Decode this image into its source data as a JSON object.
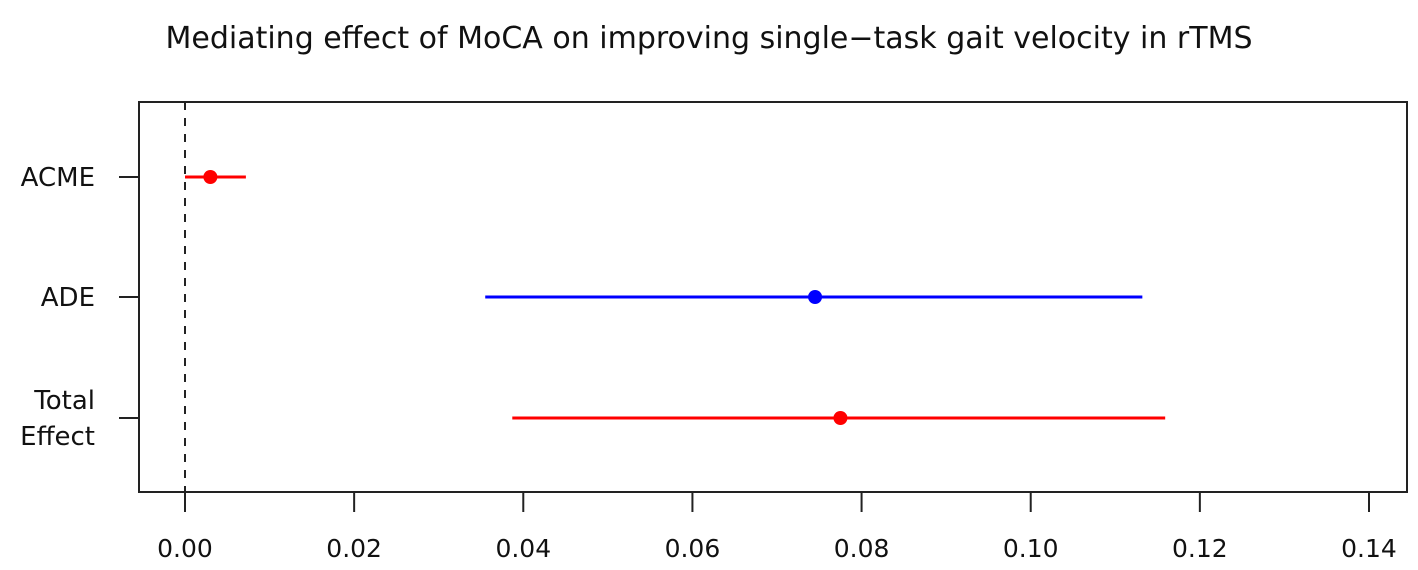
{
  "chart_data": {
    "type": "forest",
    "title": "Mediating effect of MoCA on improving single−task gait velocity in rTMS",
    "xlabel": "",
    "ylabel": "",
    "xlim": [
      -0.0055,
      0.1445
    ],
    "xticks": [
      0.0,
      0.02,
      0.04,
      0.06,
      0.08,
      0.1,
      0.12,
      0.14
    ],
    "xtick_labels": [
      "0.00",
      "0.02",
      "0.04",
      "0.06",
      "0.08",
      "0.10",
      "0.12",
      "0.14"
    ],
    "reference_line": {
      "x": 0.0,
      "style": "dashed",
      "color": "#000000"
    },
    "grid": false,
    "legend": null,
    "series": [
      {
        "name": "ACME",
        "label_lines": [
          "ACME"
        ],
        "estimate": 0.003,
        "ci_lower": 0.0,
        "ci_upper": 0.0072,
        "color": "#ff0000"
      },
      {
        "name": "ADE",
        "label_lines": [
          "ADE"
        ],
        "estimate": 0.0745,
        "ci_lower": 0.0355,
        "ci_upper": 0.1132,
        "color": "#0000ff"
      },
      {
        "name": "Total Effect",
        "label_lines": [
          "Total",
          "Effect"
        ],
        "estimate": 0.0775,
        "ci_lower": 0.0387,
        "ci_upper": 0.1159,
        "color": "#ff0000"
      }
    ]
  }
}
